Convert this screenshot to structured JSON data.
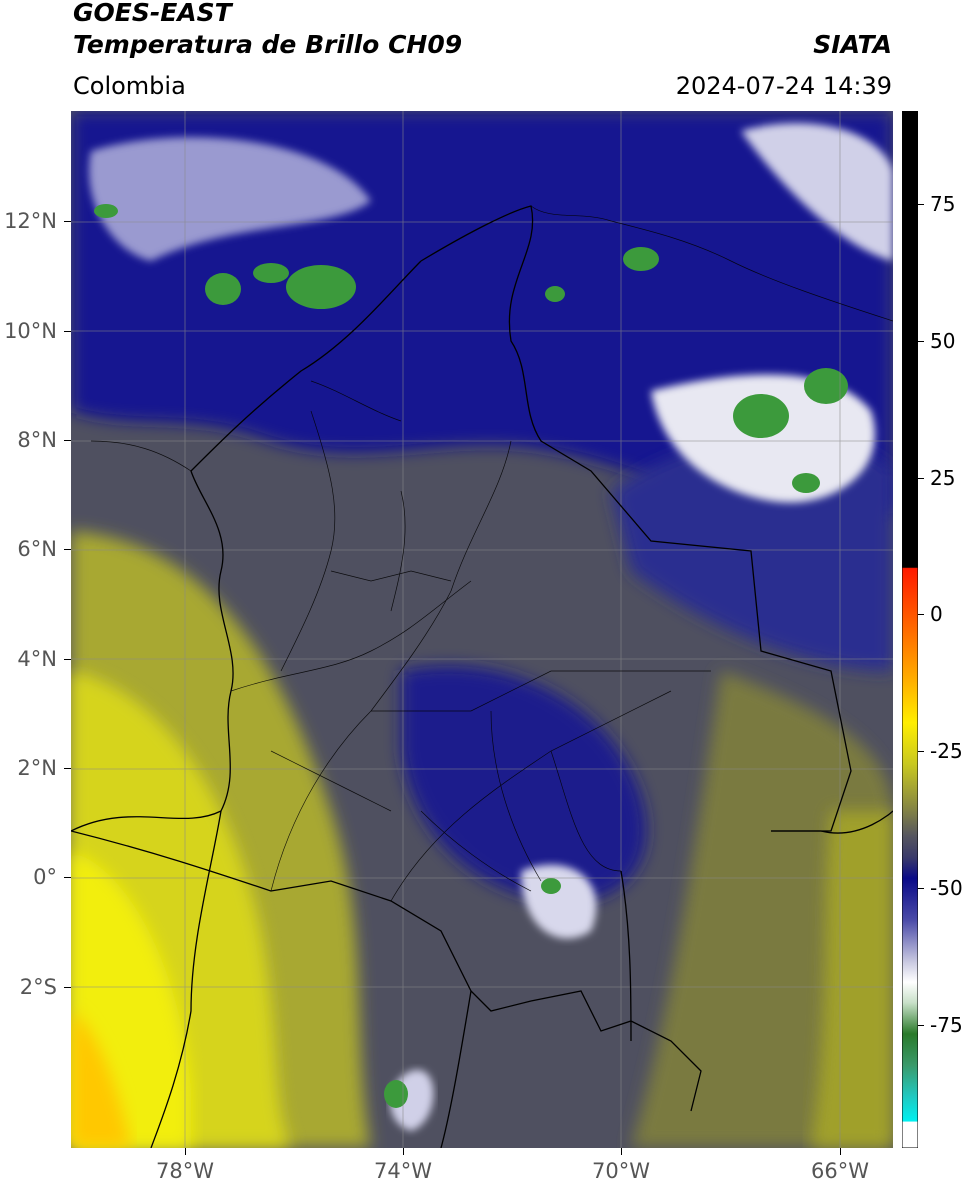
{
  "header": {
    "satellite": "GOES-EAST",
    "product": "Temperatura de Brillo CH09",
    "agency": "SIATA",
    "region": "Colombia",
    "datetime": "2024-07-24 14:39"
  },
  "axes": {
    "lat_ticks": [
      "12°N",
      "10°N",
      "8°N",
      "6°N",
      "4°N",
      "2°N",
      "0°",
      "2°S"
    ],
    "lon_ticks": [
      "78°W",
      "74°W",
      "70°W",
      "66°W"
    ]
  },
  "colorbar": {
    "ticks": [
      "75",
      "50",
      "25",
      "0",
      "-25",
      "-50",
      "-75"
    ],
    "colors": {
      "warm": "#000000",
      "hot": "#ff2a00",
      "mid": "#ffd000",
      "olive": "#8f8f2a",
      "gray": "#555560",
      "navy": "#0d108c",
      "white": "#f5f5f5",
      "green": "#3a8f3a",
      "cyan": "#00e0e0"
    }
  }
}
